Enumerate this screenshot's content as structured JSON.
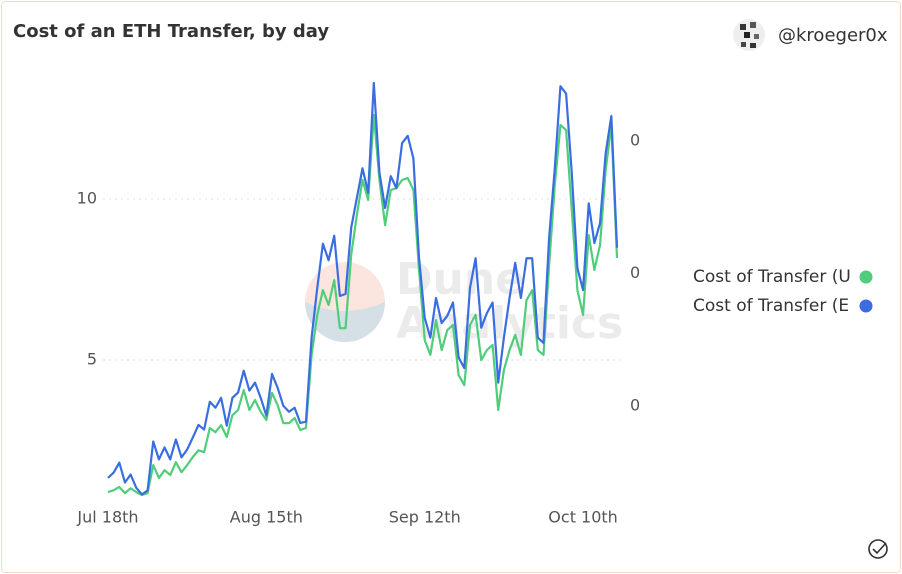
{
  "chart_data": {
    "type": "line",
    "title": "Cost of an ETH Transfer, by day",
    "author": "@kroeger0x",
    "watermark": [
      "Dune",
      "Analytics"
    ],
    "categories": [
      "Jul 18th",
      null,
      null,
      null,
      null,
      null,
      null,
      null,
      null,
      null,
      null,
      null,
      null,
      null,
      null,
      null,
      null,
      null,
      null,
      null,
      null,
      null,
      null,
      null,
      null,
      null,
      null,
      null,
      "Aug 15th",
      null,
      null,
      null,
      null,
      null,
      null,
      null,
      null,
      null,
      null,
      null,
      null,
      null,
      null,
      null,
      null,
      null,
      null,
      null,
      null,
      null,
      null,
      null,
      null,
      null,
      null,
      null,
      "Sep 12th",
      null,
      null,
      null,
      null,
      null,
      null,
      null,
      null,
      null,
      null,
      null,
      null,
      null,
      null,
      null,
      null,
      null,
      null,
      null,
      null,
      null,
      null,
      null,
      null,
      null,
      null,
      null,
      "Oct 10th",
      null,
      null,
      null,
      null,
      null,
      null
    ],
    "series": [
      {
        "name": "Cost of Transfer (U",
        "color": "#4fcd7a",
        "values": [
          0.9,
          0.96,
          1.06,
          0.87,
          1.02,
          0.9,
          0.81,
          0.87,
          1.74,
          1.34,
          1.58,
          1.43,
          1.83,
          1.52,
          1.74,
          1.99,
          2.2,
          2.14,
          2.89,
          2.76,
          2.98,
          2.61,
          3.29,
          3.45,
          4.07,
          3.45,
          3.76,
          3.39,
          3.14,
          3.98,
          3.6,
          3.04,
          3.04,
          3.2,
          2.83,
          2.89,
          5.16,
          6.4,
          7.17,
          6.71,
          7.48,
          5.99,
          5.99,
          8.26,
          9.5,
          10.59,
          9.97,
          12.61,
          10.59,
          9.19,
          10.28,
          10.34,
          10.59,
          10.65,
          10.28,
          7.8,
          5.62,
          5.16,
          6.24,
          5.31,
          5.93,
          6.09,
          4.53,
          4.22,
          6.09,
          6.4,
          5.0,
          5.31,
          5.47,
          3.45,
          4.69,
          5.31,
          5.78,
          5.16,
          6.86,
          7.17,
          5.31,
          5.16,
          7.95,
          10.43,
          12.3,
          12.14,
          9.66,
          7.17,
          6.4,
          8.88,
          7.8,
          8.57,
          10.9,
          12.3,
          8.17
        ]
      },
      {
        "name": "Cost of Transfer (E",
        "color": "#3a6ee0",
        "axis": "y2",
        "values": [
          0.000291,
          0.000299,
          0.000314,
          0.000284,
          0.000296,
          0.000276,
          0.000266,
          0.000272,
          0.000346,
          0.000319,
          0.000337,
          0.000319,
          0.000349,
          0.000322,
          0.000334,
          0.000352,
          0.000371,
          0.000364,
          0.000406,
          0.000397,
          0.000412,
          0.00037,
          0.000412,
          0.00042,
          0.000453,
          0.000423,
          0.000435,
          0.000412,
          0.000385,
          0.000448,
          0.000427,
          0.0004,
          0.000391,
          0.000397,
          0.000374,
          0.000376,
          0.000503,
          0.000578,
          0.000645,
          0.00062,
          0.000657,
          0.000566,
          0.000569,
          0.000669,
          0.000714,
          0.000759,
          0.000722,
          0.000888,
          0.000752,
          0.000699,
          0.000747,
          0.000729,
          0.000797,
          0.000808,
          0.000774,
          0.000623,
          0.000533,
          0.000503,
          0.000563,
          0.000525,
          0.000536,
          0.000556,
          0.000473,
          0.000457,
          0.000578,
          0.000623,
          0.000518,
          0.00054,
          0.000556,
          0.000435,
          0.000503,
          0.000563,
          0.000616,
          0.000563,
          0.000623,
          0.000623,
          0.000503,
          0.000495,
          0.000654,
          0.000759,
          0.000883,
          0.000872,
          0.000752,
          0.000608,
          0.000575,
          0.000706,
          0.000646,
          0.000676,
          0.000782,
          0.000838,
          0.000639
        ]
      }
    ],
    "ylim": [
      0.5,
      13.85
    ],
    "yticks": [
      5,
      10
    ],
    "y2lim": [
      0.00025,
      0.0009
    ],
    "y2ticks": [
      {
        "value": 0.0004,
        "label": "0"
      },
      {
        "value": 0.0006,
        "label": "0"
      },
      {
        "value": 0.0008,
        "label": "0"
      }
    ],
    "grid": true,
    "legend": "right"
  }
}
